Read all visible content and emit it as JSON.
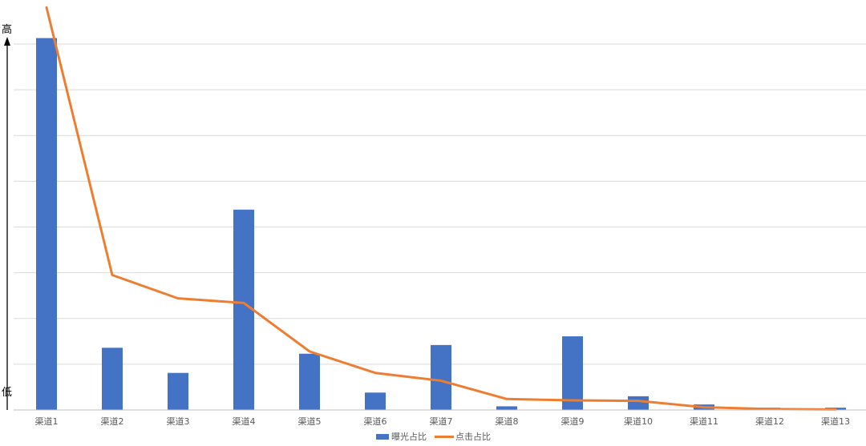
{
  "chart_data": {
    "type": "bar",
    "categories": [
      "渠道1",
      "渠道2",
      "渠道3",
      "渠道4",
      "渠道5",
      "渠道6",
      "渠道7",
      "渠道8",
      "渠道9",
      "渠道10",
      "渠道11",
      "渠道12",
      "渠道13"
    ],
    "series": [
      {
        "name": "曝光占比",
        "type": "bar",
        "color": "#4472C4",
        "values": [
          81.3,
          13.6,
          8.1,
          43.8,
          12.3,
          3.8,
          14.2,
          0.8,
          16.1,
          3.0,
          1.2,
          0.5,
          0.5
        ]
      },
      {
        "name": "点击占比",
        "type": "line",
        "color": "#ED7D31",
        "values": [
          88.0,
          29.5,
          24.4,
          23.4,
          12.8,
          8.1,
          6.4,
          2.4,
          2.1,
          2.0,
          0.6,
          0.2,
          0.1
        ]
      }
    ],
    "ylim": [
      0,
      80
    ],
    "grid": true,
    "legend_position": "bottom-center",
    "y_axis_high_label": "高",
    "y_axis_low_label": "低"
  }
}
